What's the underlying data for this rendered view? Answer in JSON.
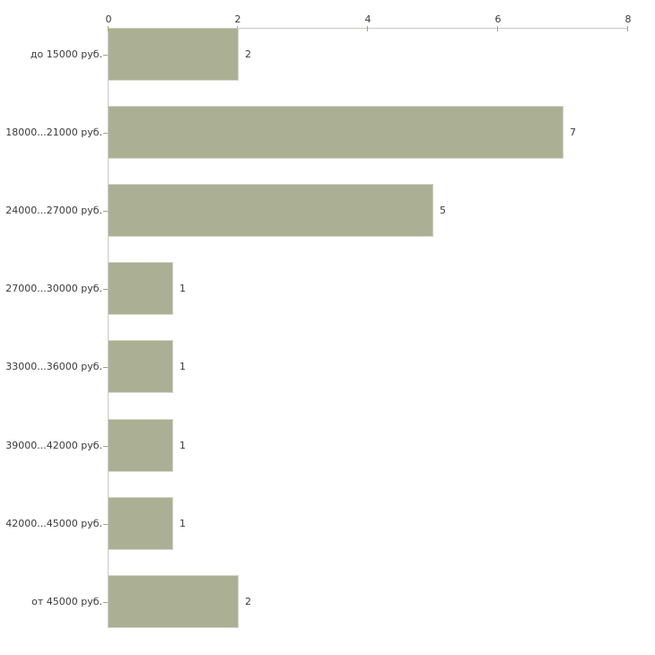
{
  "chart_data": {
    "type": "bar",
    "orientation": "horizontal",
    "title": "",
    "xlabel": "",
    "ylabel": "",
    "categories": [
      "до 15000 руб.",
      "18000...21000 руб.",
      "24000...27000 руб.",
      "27000...30000 руб.",
      "33000...36000 руб.",
      "39000...42000 руб.",
      "42000...45000 руб.",
      "от 45000 руб."
    ],
    "values": [
      2,
      7,
      5,
      1,
      1,
      1,
      1,
      2
    ],
    "value_labels": [
      "2",
      "7",
      "5",
      "1",
      "1",
      "1",
      "1",
      "2"
    ],
    "x_ticks": [
      0,
      2,
      4,
      6,
      8
    ],
    "xlim": [
      0,
      8
    ],
    "grid": false,
    "legend": false,
    "colors": {
      "bar": "#abb095",
      "axis_line": "#c8c8c4",
      "tick": "#a4a670",
      "text": "#3a3a3a",
      "background": "#ffffff"
    }
  }
}
